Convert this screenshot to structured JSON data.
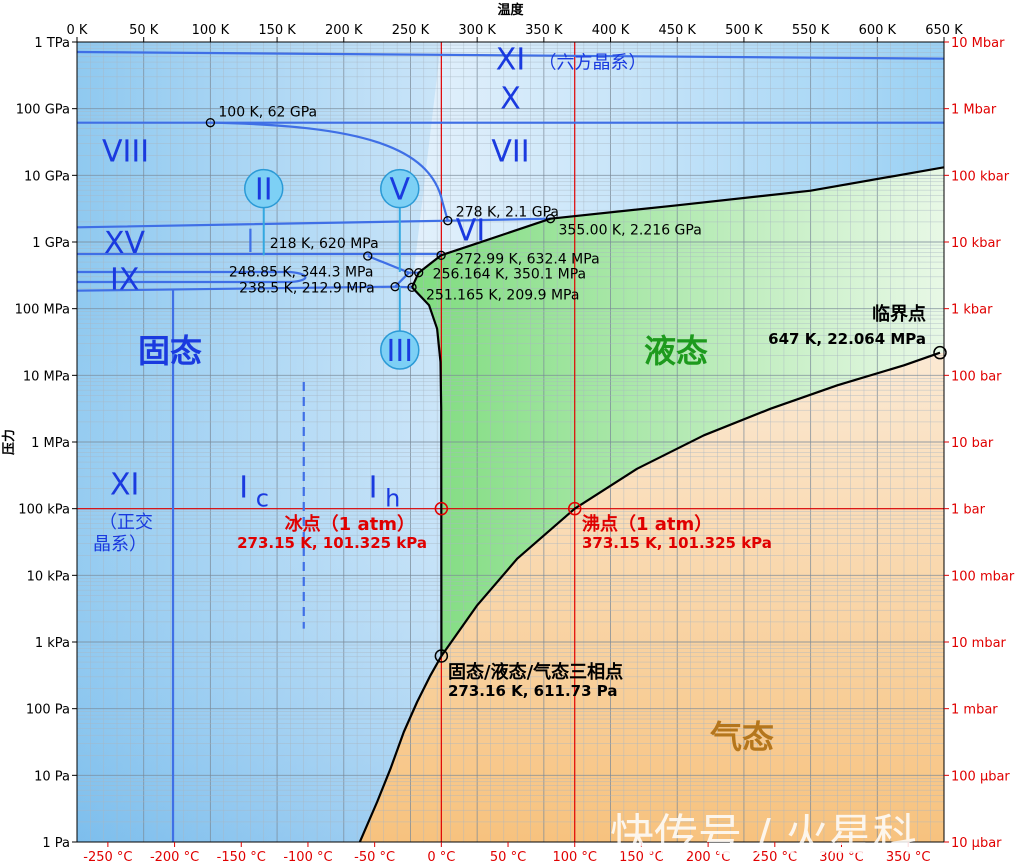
{
  "chart_data": {
    "type": "phase-diagram",
    "title": "",
    "xlabel": "温度",
    "ylabel": "压力",
    "xlim": [
      0,
      650
    ],
    "ylim_pa_log10": [
      0,
      12
    ],
    "scale_y": "log",
    "grid": true,
    "top_ticks": [
      {
        "k": 0,
        "label": "0 K"
      },
      {
        "k": 50,
        "label": "50 K"
      },
      {
        "k": 100,
        "label": "100 K"
      },
      {
        "k": 150,
        "label": "150 K"
      },
      {
        "k": 200,
        "label": "200 K"
      },
      {
        "k": 250,
        "label": "250 K"
      },
      {
        "k": 300,
        "label": "300 K"
      },
      {
        "k": 350,
        "label": "350 K"
      },
      {
        "k": 400,
        "label": "400 K"
      },
      {
        "k": 450,
        "label": "450 K"
      },
      {
        "k": 500,
        "label": "500 K"
      },
      {
        "k": 550,
        "label": "550 K"
      },
      {
        "k": 600,
        "label": "600 K"
      },
      {
        "k": 650,
        "label": "650 K"
      }
    ],
    "bottom_ticks": [
      {
        "k": 23.15,
        "label": "-250 °C"
      },
      {
        "k": 73.15,
        "label": "-200 °C"
      },
      {
        "k": 123.15,
        "label": "-150 °C"
      },
      {
        "k": 173.15,
        "label": "-100 °C"
      },
      {
        "k": 223.15,
        "label": "-50 °C"
      },
      {
        "k": 273.15,
        "label": "0 °C"
      },
      {
        "k": 323.15,
        "label": "50 °C"
      },
      {
        "k": 373.15,
        "label": "100 °C"
      },
      {
        "k": 423.15,
        "label": "150 °C"
      },
      {
        "k": 473.15,
        "label": "200 °C"
      },
      {
        "k": 523.15,
        "label": "250 °C"
      },
      {
        "k": 573.15,
        "label": "300 °C"
      },
      {
        "k": 623.15,
        "label": "350 °C"
      }
    ],
    "left_ticks": [
      {
        "logp": 0,
        "label": "1 Pa"
      },
      {
        "logp": 1,
        "label": "10 Pa"
      },
      {
        "logp": 2,
        "label": "100 Pa"
      },
      {
        "logp": 3,
        "label": "1 kPa"
      },
      {
        "logp": 4,
        "label": "10 kPa"
      },
      {
        "logp": 5,
        "label": "100 kPa"
      },
      {
        "logp": 6,
        "label": "1 MPa"
      },
      {
        "logp": 7,
        "label": "10 MPa"
      },
      {
        "logp": 8,
        "label": "100 MPa"
      },
      {
        "logp": 9,
        "label": "1 GPa"
      },
      {
        "logp": 10,
        "label": "10 GPa"
      },
      {
        "logp": 11,
        "label": "100 GPa"
      },
      {
        "logp": 12,
        "label": "1 TPa"
      }
    ],
    "right_ticks": [
      {
        "logp": 0,
        "label": "10 μbar"
      },
      {
        "logp": 1,
        "label": "100 μbar"
      },
      {
        "logp": 2,
        "label": "1 mbar"
      },
      {
        "logp": 3,
        "label": "10 mbar"
      },
      {
        "logp": 4,
        "label": "100 mbar"
      },
      {
        "logp": 5,
        "label": "1 bar"
      },
      {
        "logp": 6,
        "label": "10 bar"
      },
      {
        "logp": 7,
        "label": "100 bar"
      },
      {
        "logp": 8,
        "label": "1 kbar"
      },
      {
        "logp": 9,
        "label": "10 kbar"
      },
      {
        "logp": 10,
        "label": "100 kbar"
      },
      {
        "logp": 11,
        "label": "1 Mbar"
      },
      {
        "logp": 12,
        "label": "10 Mbar"
      }
    ],
    "phase_labels": {
      "solid": "固态",
      "liquid": "液态",
      "gas": "气态"
    },
    "ice_phases": [
      {
        "label": "XI",
        "sub": "（六方晶系）",
        "k": 325,
        "logp": 11.75
      },
      {
        "label": "X",
        "k": 325,
        "logp": 11.17
      },
      {
        "label": "VIII",
        "k": 37,
        "logp": 10.37
      },
      {
        "label": "VII",
        "k": 325,
        "logp": 10.37
      },
      {
        "label": "VI",
        "k": 295,
        "logp": 9.19
      },
      {
        "label": "XV",
        "k": 37,
        "logp": 9.0
      },
      {
        "label": "IX",
        "k": 37,
        "logp": 8.45
      },
      {
        "label": "XI",
        "k": 37,
        "logp": 5.38
      },
      {
        "label": "I",
        "sub": "c",
        "k": 125,
        "logp": 5.33
      },
      {
        "label": "I",
        "sub": "h",
        "k": 222,
        "logp": 5.33
      }
    ],
    "xi_orthorhombic_note": [
      "（正交",
      "晶系）"
    ],
    "circle_labels": [
      {
        "label": "II",
        "k": 140,
        "logp": 9.8
      },
      {
        "label": "V",
        "k": 242,
        "logp": 9.8
      },
      {
        "label": "III",
        "k": 242,
        "logp": 7.38
      }
    ],
    "points": [
      {
        "k": 100,
        "logp": 10.79,
        "label": "100 K, 62 GPa"
      },
      {
        "k": 278,
        "logp": 9.32,
        "label": "278 K, 2.1 GPa"
      },
      {
        "k": 355,
        "logp": 9.35,
        "label": "355.00 K, 2.216 GPa"
      },
      {
        "k": 218,
        "logp": 8.79,
        "label": "218 K, 620 MPa"
      },
      {
        "k": 272.99,
        "logp": 8.8,
        "label": "272.99 K, 632.4 MPa"
      },
      {
        "k": 256.164,
        "logp": 8.54,
        "label": "256.164 K, 350.1 MPa"
      },
      {
        "k": 248.85,
        "logp": 8.54,
        "label": "248.85 K, 344.3 MPa"
      },
      {
        "k": 251.165,
        "logp": 8.32,
        "label": "251.165 K, 209.9 MPa"
      },
      {
        "k": 238.5,
        "logp": 8.33,
        "label": "238.5 K, 212.9 MPa"
      }
    ],
    "critical_point": {
      "k": 647,
      "logp": 7.34,
      "title": "临界点",
      "label": "647 K, 22.064 MPa"
    },
    "triple_point": {
      "k": 273.16,
      "logp": 2.79,
      "title": "固态/液态/气态三相点",
      "label": "273.16 K, 611.73 Pa"
    },
    "freezing_point": {
      "k": 273.15,
      "logp": 5.0,
      "title": "冰点（1 atm）",
      "label": "273.15 K, 101.325 kPa"
    },
    "boiling_point": {
      "k": 373.15,
      "logp": 5.0,
      "title": "沸点（1 atm）",
      "label": "373.15 K, 101.325 kPa"
    },
    "sublimation_curve": [
      {
        "k": 212,
        "logp": 0
      },
      {
        "k": 225,
        "logp": 0.6
      },
      {
        "k": 235,
        "logp": 1.1
      },
      {
        "k": 245,
        "logp": 1.65
      },
      {
        "k": 255,
        "logp": 2.1
      },
      {
        "k": 265,
        "logp": 2.5
      },
      {
        "k": 273.16,
        "logp": 2.79
      }
    ],
    "vaporization_curve": [
      {
        "k": 273.16,
        "logp": 2.79
      },
      {
        "k": 300,
        "logp": 3.55
      },
      {
        "k": 330,
        "logp": 4.25
      },
      {
        "k": 373.15,
        "logp": 5.0
      },
      {
        "k": 420,
        "logp": 5.6
      },
      {
        "k": 470,
        "logp": 6.1
      },
      {
        "k": 520,
        "logp": 6.5
      },
      {
        "k": 570,
        "logp": 6.85
      },
      {
        "k": 620,
        "logp": 7.15
      },
      {
        "k": 647,
        "logp": 7.34
      }
    ],
    "melting_curve_ih": [
      {
        "k": 273.16,
        "logp": 2.79
      },
      {
        "k": 273.14,
        "logp": 5.0
      },
      {
        "k": 273.05,
        "logp": 6.5
      },
      {
        "k": 272.5,
        "logp": 7.2
      },
      {
        "k": 270,
        "logp": 7.7
      },
      {
        "k": 264,
        "logp": 8.05
      },
      {
        "k": 251.165,
        "logp": 8.32
      }
    ],
    "melting_curve_high": [
      {
        "k": 251.165,
        "logp": 8.32
      },
      {
        "k": 256.164,
        "logp": 8.54
      },
      {
        "k": 272.99,
        "logp": 8.8
      },
      {
        "k": 300,
        "logp": 8.98
      },
      {
        "k": 355,
        "logp": 9.35
      },
      {
        "k": 450,
        "logp": 9.55
      },
      {
        "k": 550,
        "logp": 9.77
      },
      {
        "k": 650,
        "logp": 10.12
      }
    ]
  },
  "watermark": "快传号 / 火星科"
}
